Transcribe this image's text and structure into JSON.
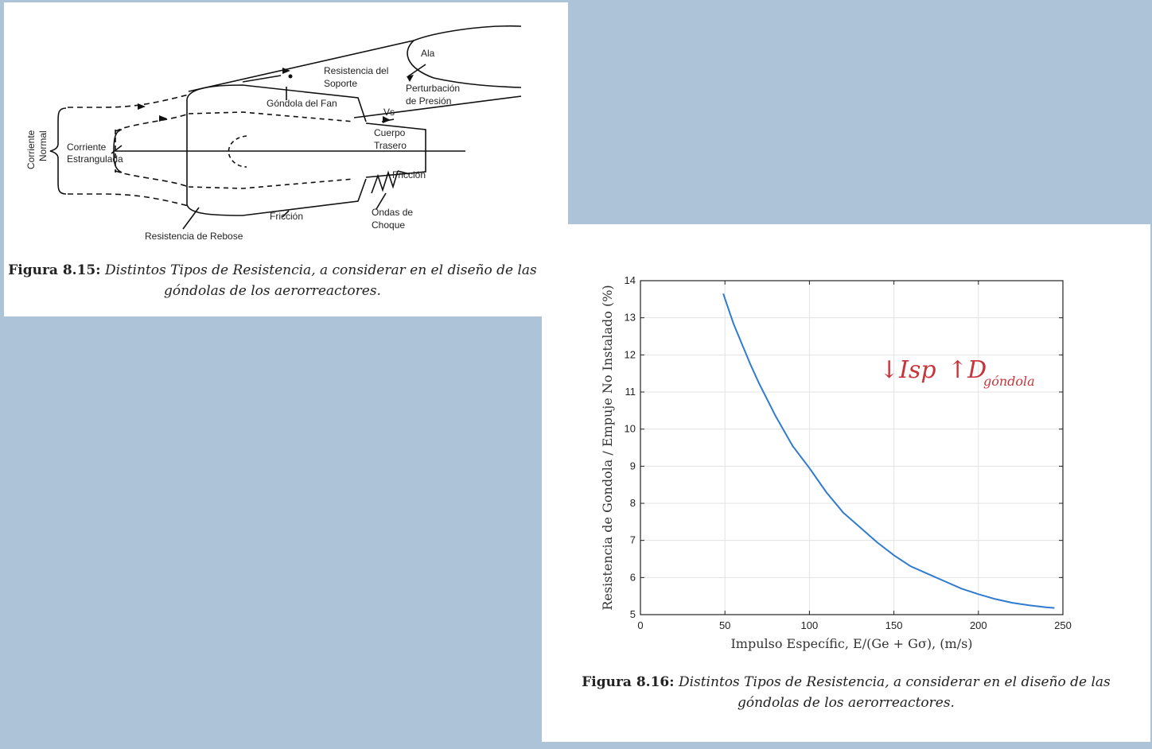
{
  "figure_left": {
    "caption_label": "Figura 8.15:",
    "caption_text": "Distintos Tipos de Resistencia, a considerar en el diseño de las góndolas de los aerorreactores.",
    "labels": {
      "ala": "Ala",
      "resistencia_soporte_1": "Resistencia del",
      "resistencia_soporte_2": "Soporte",
      "perturbacion_1": "Perturbación",
      "perturbacion_2": "de Presión",
      "gondola_fan": "Góndola del Fan",
      "vs": "Vs",
      "cuerpo_1": "Cuerpo",
      "cuerpo_2": "Trasero",
      "friccion_rear": "Fricción",
      "friccion_bottom": "Fricción",
      "ondas_1": "Ondas de",
      "ondas_2": "Choque",
      "corriente_normal_1": "Corriente",
      "corriente_normal_2": "Normal",
      "corriente_estrang_1": "Corriente",
      "corriente_estrang_2": "Estrangulada",
      "rebose": "Resistencia de Rebose"
    }
  },
  "figure_right": {
    "caption_label": "Figura 8.16:",
    "caption_text": "Distintos Tipos de Resistencia, a considerar en el diseño de las góndolas de los aerorreactores.",
    "annotation": {
      "isp": "↓Isp",
      "d": "↑D",
      "sub": "góndola"
    },
    "line_color": "#2e7bd0",
    "annotation_color": "#c7343a"
  },
  "chart_data": {
    "type": "line",
    "xlabel": "Impulso Específic, E/(Ge + Gσ), (m/s)",
    "ylabel": "Resistencia de Gondola / Empuje No Instalado (%)",
    "xlim": [
      0,
      250
    ],
    "ylim": [
      5,
      14
    ],
    "xticks": [
      0,
      50,
      100,
      150,
      200,
      250
    ],
    "yticks": [
      5,
      6,
      7,
      8,
      9,
      10,
      11,
      12,
      13,
      14
    ],
    "grid": true,
    "series": [
      {
        "x": [
          49,
          55,
          60,
          65,
          70,
          75,
          80,
          90,
          100,
          110,
          120,
          130,
          140,
          150,
          160,
          170,
          180,
          190,
          200,
          210,
          220,
          230,
          240,
          245
        ],
        "y": [
          13.65,
          12.85,
          12.3,
          11.75,
          11.25,
          10.8,
          10.35,
          9.55,
          8.95,
          8.3,
          7.75,
          7.35,
          6.95,
          6.6,
          6.3,
          6.1,
          5.9,
          5.7,
          5.55,
          5.42,
          5.32,
          5.25,
          5.2,
          5.18
        ]
      }
    ]
  }
}
